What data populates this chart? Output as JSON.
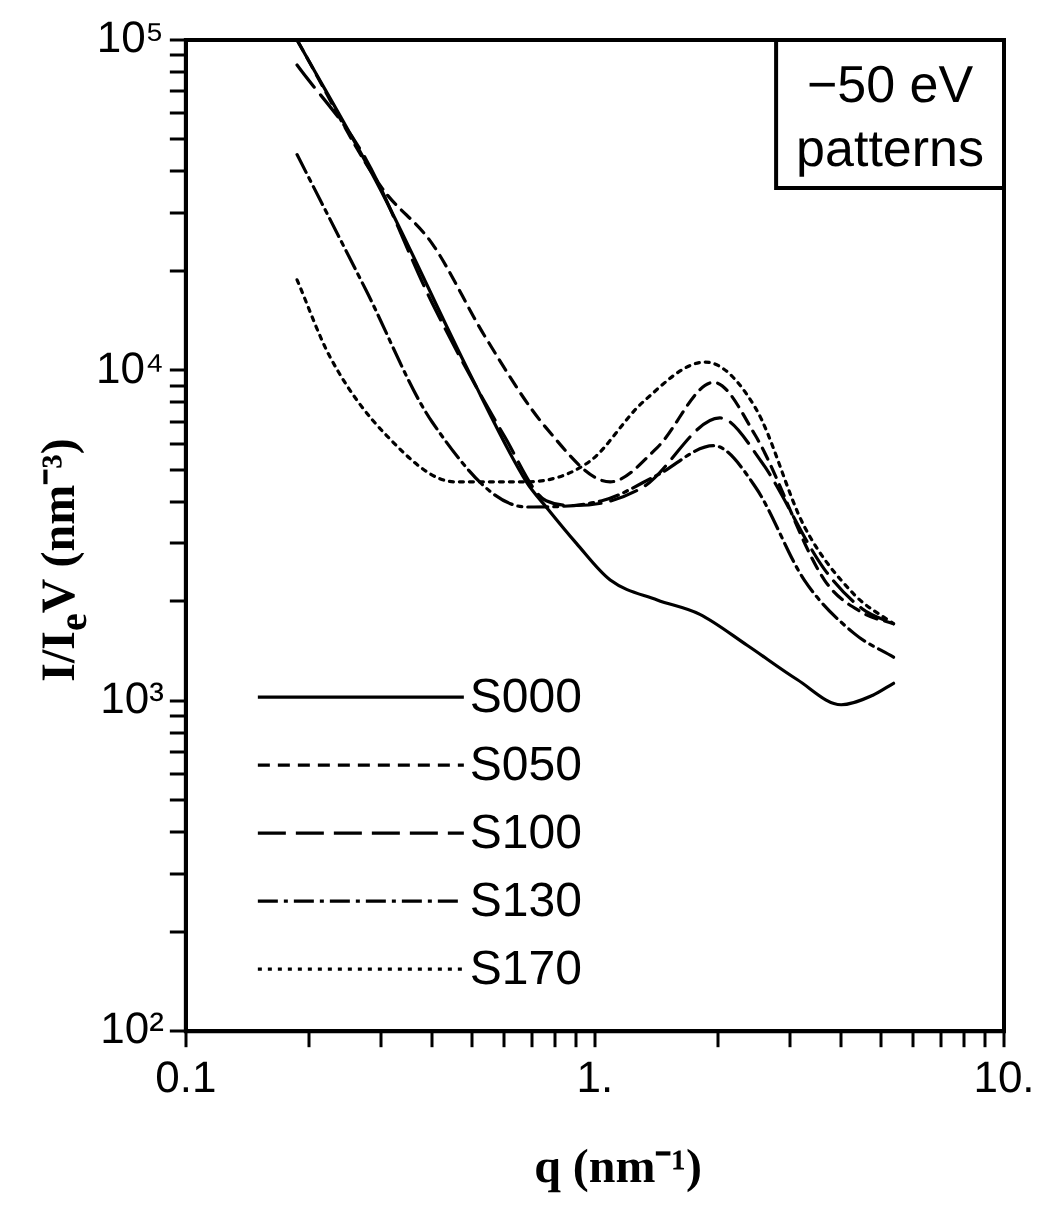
{
  "chart_data": {
    "type": "line",
    "xlabel": "q (nm⁻¹)",
    "ylabel": "I/I$_{e}$V (nm⁻³)",
    "log": "xy",
    "xlim": [
      0.1,
      10
    ],
    "ylim": [
      100,
      100000
    ],
    "xticks": [
      0.1,
      {
        "value": 0.2,
        "label": null
      },
      {
        "value": 0.3,
        "label": null
      },
      {
        "value": 0.4,
        "label": null
      },
      {
        "value": 0.5,
        "label": null
      },
      {
        "value": 0.6,
        "label": null
      },
      {
        "value": 0.7,
        "label": null
      },
      {
        "value": 0.8,
        "label": null
      },
      {
        "value": 0.9,
        "label": null
      },
      {
        "value": 1,
        "label": "1."
      },
      {
        "value": 2,
        "label": null
      },
      {
        "value": 3,
        "label": null
      },
      {
        "value": 4,
        "label": null
      },
      {
        "value": 5,
        "label": null
      },
      {
        "value": 6,
        "label": null
      },
      {
        "value": 7,
        "label": null
      },
      {
        "value": 8,
        "label": null
      },
      {
        "value": 9,
        "label": null
      },
      {
        "value": 10,
        "label": "10."
      }
    ],
    "yticks": [
      {
        "value": 100,
        "label": "10²"
      },
      {
        "value": 200,
        "label": null
      },
      {
        "value": 300,
        "label": null
      },
      {
        "value": 400,
        "label": null
      },
      {
        "value": 500,
        "label": null
      },
      {
        "value": 600,
        "label": null
      },
      {
        "value": 700,
        "label": null
      },
      {
        "value": 800,
        "label": null
      },
      {
        "value": 900,
        "label": null
      },
      {
        "value": 1000,
        "label": "10³"
      },
      {
        "value": 2000,
        "label": null
      },
      {
        "value": 3000,
        "label": null
      },
      {
        "value": 4000,
        "label": null
      },
      {
        "value": 5000,
        "label": null
      },
      {
        "value": 6000,
        "label": null
      },
      {
        "value": 7000,
        "label": null
      },
      {
        "value": 8000,
        "label": null
      },
      {
        "value": 9000,
        "label": null
      },
      {
        "value": 10000,
        "label": "10⁴"
      },
      {
        "value": 20000,
        "label": null
      },
      {
        "value": 30000,
        "label": null
      },
      {
        "value": 40000,
        "label": null
      },
      {
        "value": 50000,
        "label": null
      },
      {
        "value": 60000,
        "label": null
      },
      {
        "value": 70000,
        "label": null
      },
      {
        "value": 80000,
        "label": null
      },
      {
        "value": 90000,
        "label": null
      },
      {
        "value": 100000,
        "label": "10⁵"
      }
    ],
    "grid": false,
    "legend": "bottom left",
    "marker": "none",
    "annotations": [
      "−50 eV",
      "patterns"
    ],
    "series": [
      {
        "name": "S000",
        "color": "#000000",
        "line_style": "solid",
        "x": [
          0.187,
          0.3,
          0.49,
          0.68,
          0.76,
          0.9,
          1.09,
          1.42,
          1.8,
          2.36,
          3.12,
          4.0,
          4.78,
          5.37
        ],
        "values": [
          100000,
          35000,
          10000,
          4600,
          3860,
          3000,
          2320,
          2020,
          1830,
          1470,
          1160,
          973,
          1040,
          1130
        ]
      },
      {
        "name": "S050",
        "color": "#000000",
        "line_style": "dashed",
        "x": [
          0.187,
          0.3,
          0.4,
          0.54,
          0.76,
          1.09,
          1.42,
          1.95,
          2.47,
          3.64,
          4.5,
          5.37
        ],
        "values": [
          100000,
          36000,
          24200,
          12600,
          6700,
          4600,
          5840,
          9200,
          6340,
          2320,
          1850,
          1710
        ]
      },
      {
        "name": "S100",
        "color": "#000000",
        "line_style": "longdash",
        "x": [
          0.187,
          0.275,
          0.4,
          0.6,
          0.76,
          0.9,
          1.31,
          2.02,
          2.55,
          3.64,
          4.5,
          5.37
        ],
        "values": [
          84000,
          43800,
          16000,
          6340,
          4030,
          3900,
          4430,
          7180,
          5300,
          2500,
          1900,
          1710
        ]
      },
      {
        "name": "S130",
        "color": "#000000",
        "line_style": "dashdot",
        "x": [
          0.187,
          0.275,
          0.4,
          0.68,
          1.04,
          1.42,
          1.95,
          2.47,
          3.25,
          4.3,
          5.37
        ],
        "values": [
          45000,
          17600,
          6980,
          3860,
          4030,
          4820,
          5920,
          4430,
          2320,
          1600,
          1355
        ]
      },
      {
        "name": "S170",
        "color": "#000000",
        "line_style": "dotted",
        "x": [
          0.187,
          0.225,
          0.31,
          0.455,
          0.68,
          0.97,
          1.31,
          1.86,
          2.47,
          3.25,
          4.3,
          5.37
        ],
        "values": [
          18800,
          11000,
          6340,
          4600,
          4600,
          5300,
          8020,
          10600,
          7690,
          3370,
          2100,
          1710
        ]
      }
    ]
  }
}
